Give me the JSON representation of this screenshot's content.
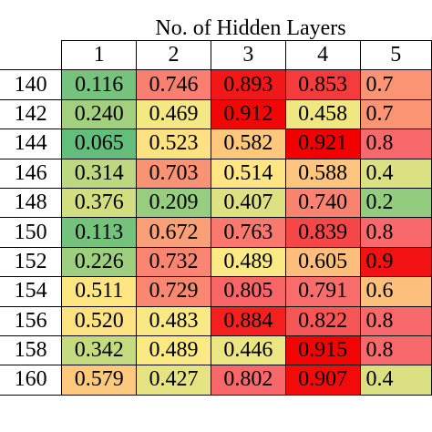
{
  "chart_data": {
    "type": "heatmap",
    "title": "No. of Hidden Layers",
    "columns": [
      "1",
      "2",
      "3",
      "4",
      "5"
    ],
    "rows": [
      "140",
      "142",
      "144",
      "146",
      "148",
      "150",
      "152",
      "154",
      "156",
      "158",
      "160"
    ],
    "values": [
      [
        "0.116",
        "0.746",
        "0.893",
        "0.853",
        "0.7"
      ],
      [
        "0.240",
        "0.469",
        "0.912",
        "0.458",
        "0.7"
      ],
      [
        "0.065",
        "0.523",
        "0.582",
        "0.921",
        "0.8"
      ],
      [
        "0.314",
        "0.703",
        "0.514",
        "0.588",
        "0.4"
      ],
      [
        "0.376",
        "0.209",
        "0.407",
        "0.740",
        "0.2"
      ],
      [
        "0.113",
        "0.672",
        "0.763",
        "0.839",
        "0.8"
      ],
      [
        "0.226",
        "0.732",
        "0.489",
        "0.605",
        "0.9"
      ],
      [
        "0.511",
        "0.729",
        "0.805",
        "0.791",
        "0.6"
      ],
      [
        "0.520",
        "0.483",
        "0.884",
        "0.822",
        "0.8"
      ],
      [
        "0.342",
        "0.489",
        "0.446",
        "0.915",
        "0.8"
      ],
      [
        "0.579",
        "0.427",
        "0.802",
        "0.907",
        "0.4"
      ]
    ],
    "color_scale": {
      "low": "#63be7b",
      "mid": "#ffeb84",
      "high": "#f8696b",
      "max": "#f20000"
    }
  }
}
